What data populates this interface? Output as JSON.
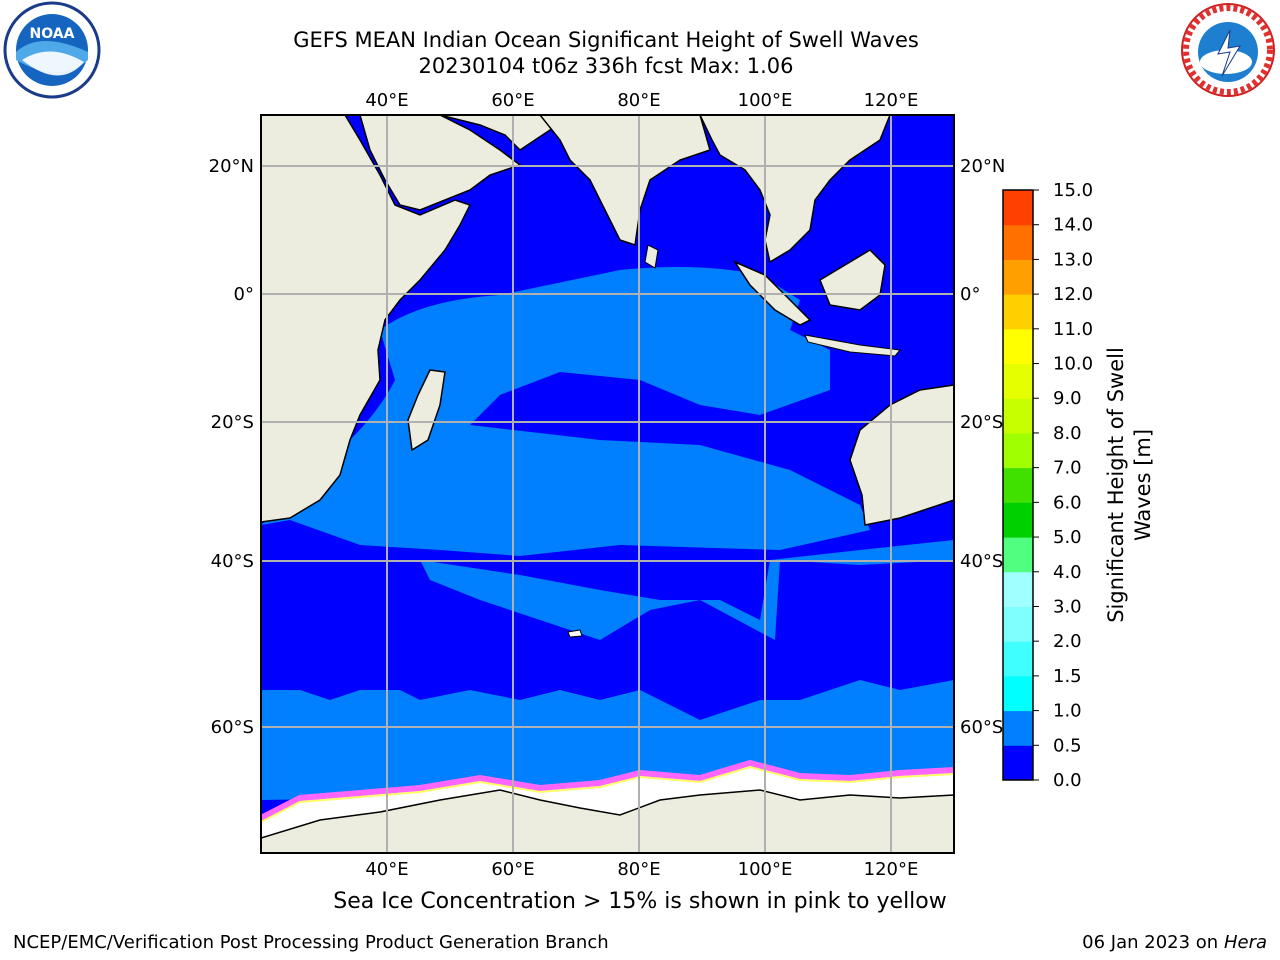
{
  "title": {
    "line1": "GEFS MEAN Indian Ocean Significant Height of Swell Waves",
    "line2": "20230104 t06z 336h fcst   Max: 1.06"
  },
  "map": {
    "lon_labels": [
      "40°E",
      "60°E",
      "80°E",
      "100°E",
      "120°E"
    ],
    "lat_labels": [
      "20°N",
      "0°",
      "20°S",
      "40°S",
      "60°S"
    ],
    "colors": {
      "land": "#ededdf",
      "ocean_low": "#0000ff",
      "ocean_mid": "#0080ff",
      "ice": "#ffffff",
      "ice_edge_pink": "#ff66ff",
      "ice_edge_yellow": "#ffff66",
      "grid": "#b0b0b0"
    }
  },
  "colorbar": {
    "title_line1": "Significant Height of Swell",
    "title_line2": "Waves [m]",
    "levels": [
      "0.0",
      "0.5",
      "1.0",
      "1.5",
      "2.0",
      "3.0",
      "4.0",
      "5.0",
      "6.0",
      "7.0",
      "8.0",
      "9.0",
      "10.0",
      "11.0",
      "12.0",
      "13.0",
      "14.0",
      "15.0"
    ],
    "colors": [
      "#0000ff",
      "#0080ff",
      "#00ffff",
      "#40ffff",
      "#80ffff",
      "#a0ffff",
      "#50ff80",
      "#00d000",
      "#40e000",
      "#a0ff00",
      "#c8ff00",
      "#e6ff00",
      "#ffff00",
      "#ffd000",
      "#ffa000",
      "#ff7000",
      "#ff4000"
    ]
  },
  "caption": "Sea Ice Concentration > 15% is shown in pink to yellow",
  "footer": {
    "left": "NCEP/EMC/Verification Post Processing Product Generation Branch",
    "right_date": "06 Jan 2023 on ",
    "right_machine": "Hera"
  },
  "logos": {
    "noaa_text": "NOAA",
    "nws_text": "NATIONAL WEATHER SERVICE"
  }
}
